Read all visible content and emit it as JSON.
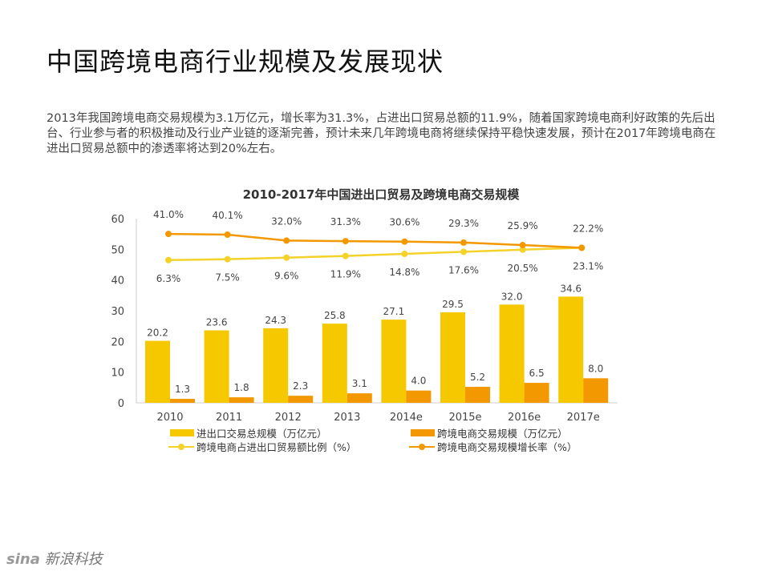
{
  "page": {
    "title": "中国跨境电商行业规模及发展现状",
    "paragraph": "2013年我国跨境电商交易规模为3.1万亿元，增长率为31.3%，占进出口贸易总额的11.9%，随着国家跨境电商利好政策的先后出台、行业参与者的积极推动及行业产业链的逐渐完善，预计未来几年跨境电商将继续保持平稳快速发展，预计在2017年跨境电商在进出口贸易总额中的渗透率将达到20%左右。",
    "logo": "新浪科技"
  },
  "chart_data": {
    "type": "bar+line",
    "title": "2010-2017年中国进出口贸易及跨境电商交易规模",
    "categories": [
      "2010",
      "2011",
      "2012",
      "2013",
      "2014e",
      "2015e",
      "2016e",
      "2017e"
    ],
    "ylim": [
      0,
      60
    ],
    "yticks": [
      0,
      10,
      20,
      30,
      40,
      50,
      60
    ],
    "grid": false,
    "legend": "bottom",
    "series": [
      {
        "name": "进出口交易总规模（万亿元）",
        "type": "bar",
        "color": "#F5C800",
        "values": [
          20.2,
          23.6,
          24.3,
          25.8,
          27.1,
          29.5,
          32.0,
          34.6
        ]
      },
      {
        "name": "跨境电商交易规模（万亿元）",
        "type": "bar",
        "color": "#F39800",
        "values": [
          1.3,
          1.8,
          2.3,
          3.1,
          4.0,
          5.2,
          6.5,
          8.0
        ]
      },
      {
        "name": "跨境电商占进出口贸易额比例（%）",
        "type": "line",
        "color": "#F5D22A",
        "values": [
          6.3,
          7.5,
          9.6,
          11.9,
          14.8,
          17.6,
          20.5,
          23.1
        ]
      },
      {
        "name": "跨境电商交易规模增长率（%）",
        "type": "line",
        "color": "#F39800",
        "values": [
          41.0,
          40.1,
          32.0,
          31.3,
          30.6,
          29.3,
          25.9,
          22.2
        ]
      }
    ]
  }
}
